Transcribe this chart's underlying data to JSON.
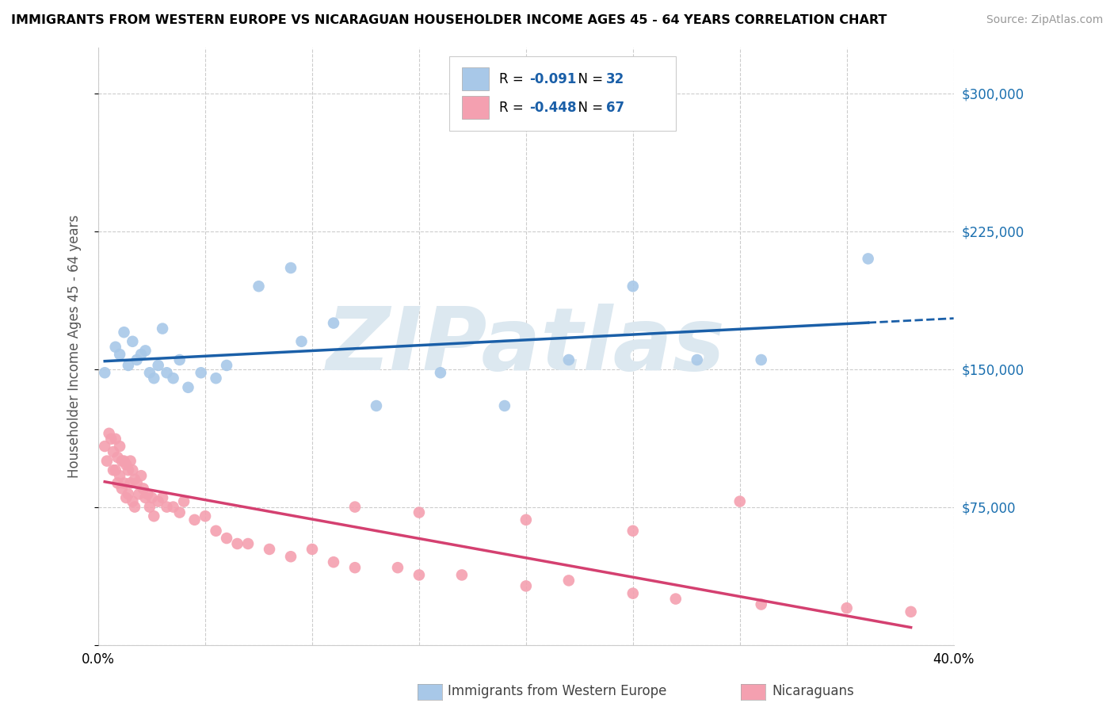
{
  "title": "IMMIGRANTS FROM WESTERN EUROPE VS NICARAGUAN HOUSEHOLDER INCOME AGES 45 - 64 YEARS CORRELATION CHART",
  "source": "Source: ZipAtlas.com",
  "ylabel": "Householder Income Ages 45 - 64 years",
  "xlim": [
    0.0,
    0.4
  ],
  "ylim": [
    0,
    325000
  ],
  "yticks": [
    0,
    75000,
    150000,
    225000,
    300000
  ],
  "ytick_labels": [
    "",
    "$75,000",
    "$150,000",
    "$225,000",
    "$300,000"
  ],
  "blue_R": -0.091,
  "blue_N": 32,
  "pink_R": -0.448,
  "pink_N": 67,
  "blue_color": "#a8c8e8",
  "blue_line_color": "#1a5fa8",
  "pink_color": "#f4a0b0",
  "pink_line_color": "#d44070",
  "watermark": "ZIPatlas",
  "watermark_color": "#dce8f0",
  "blue_scatter_x": [
    0.003,
    0.008,
    0.01,
    0.012,
    0.014,
    0.016,
    0.018,
    0.02,
    0.022,
    0.024,
    0.026,
    0.028,
    0.03,
    0.032,
    0.035,
    0.038,
    0.042,
    0.048,
    0.055,
    0.06,
    0.075,
    0.09,
    0.095,
    0.11,
    0.13,
    0.16,
    0.19,
    0.22,
    0.25,
    0.28,
    0.31,
    0.36
  ],
  "blue_scatter_y": [
    148000,
    162000,
    158000,
    170000,
    152000,
    165000,
    155000,
    158000,
    160000,
    148000,
    145000,
    152000,
    172000,
    148000,
    145000,
    155000,
    140000,
    148000,
    145000,
    152000,
    195000,
    205000,
    165000,
    175000,
    130000,
    148000,
    130000,
    155000,
    195000,
    155000,
    155000,
    210000
  ],
  "pink_scatter_x": [
    0.003,
    0.004,
    0.005,
    0.006,
    0.007,
    0.007,
    0.008,
    0.008,
    0.009,
    0.009,
    0.01,
    0.01,
    0.011,
    0.011,
    0.012,
    0.012,
    0.013,
    0.013,
    0.014,
    0.014,
    0.015,
    0.015,
    0.016,
    0.016,
    0.017,
    0.017,
    0.018,
    0.019,
    0.02,
    0.021,
    0.022,
    0.023,
    0.024,
    0.025,
    0.026,
    0.028,
    0.03,
    0.032,
    0.035,
    0.038,
    0.04,
    0.045,
    0.05,
    0.055,
    0.06,
    0.065,
    0.07,
    0.08,
    0.09,
    0.1,
    0.11,
    0.12,
    0.14,
    0.15,
    0.17,
    0.2,
    0.22,
    0.25,
    0.27,
    0.31,
    0.12,
    0.15,
    0.2,
    0.25,
    0.3,
    0.35,
    0.38
  ],
  "pink_scatter_y": [
    108000,
    100000,
    115000,
    112000,
    105000,
    95000,
    112000,
    95000,
    102000,
    88000,
    108000,
    92000,
    100000,
    85000,
    100000,
    88000,
    98000,
    80000,
    95000,
    82000,
    100000,
    88000,
    95000,
    78000,
    90000,
    75000,
    88000,
    82000,
    92000,
    85000,
    80000,
    82000,
    75000,
    80000,
    70000,
    78000,
    80000,
    75000,
    75000,
    72000,
    78000,
    68000,
    70000,
    62000,
    58000,
    55000,
    55000,
    52000,
    48000,
    52000,
    45000,
    42000,
    42000,
    38000,
    38000,
    32000,
    35000,
    28000,
    25000,
    22000,
    75000,
    72000,
    68000,
    62000,
    78000,
    20000,
    18000
  ]
}
